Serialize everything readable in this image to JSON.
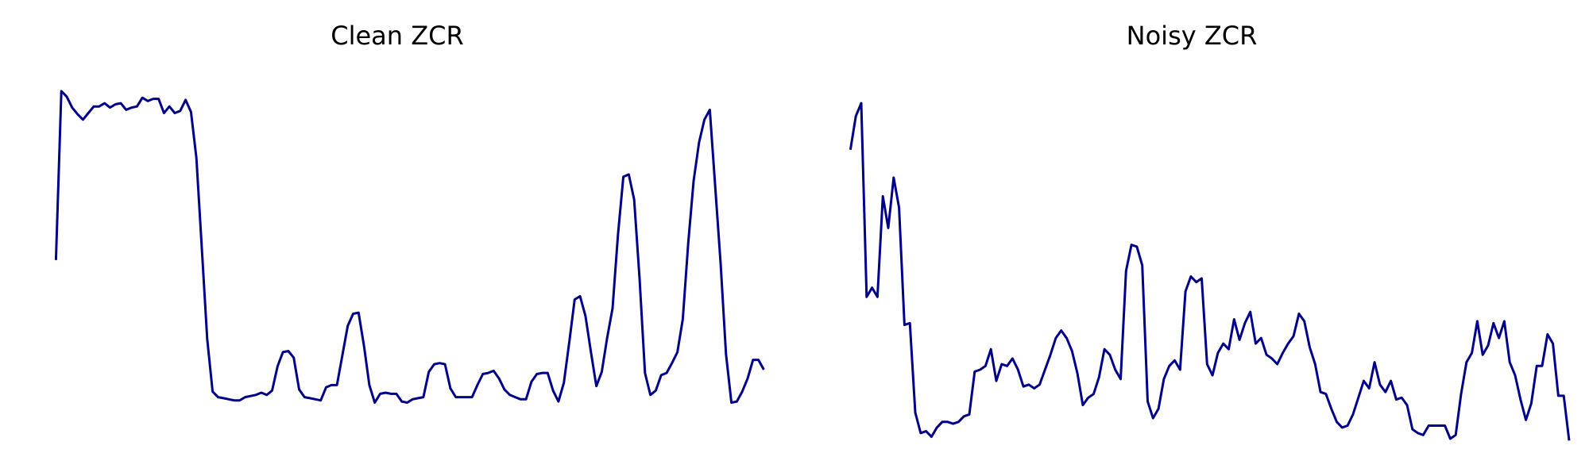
{
  "chart_data": [
    {
      "type": "line",
      "title": "Clean ZCR",
      "xlabel": "",
      "ylabel": "",
      "grid": false,
      "axes_visible": false,
      "color": "#00008B",
      "xlim": [
        -3,
        133
      ],
      "ylim": [
        0.02,
        0.36
      ],
      "values": [
        0.188,
        0.342,
        0.337,
        0.327,
        0.321,
        0.316,
        0.322,
        0.328,
        0.328,
        0.331,
        0.327,
        0.33,
        0.331,
        0.325,
        0.327,
        0.328,
        0.336,
        0.333,
        0.335,
        0.335,
        0.322,
        0.328,
        0.322,
        0.324,
        0.334,
        0.323,
        0.281,
        0.199,
        0.116,
        0.068,
        0.063,
        0.062,
        0.061,
        0.06,
        0.06,
        0.063,
        0.064,
        0.065,
        0.067,
        0.065,
        0.069,
        0.091,
        0.104,
        0.105,
        0.099,
        0.07,
        0.063,
        0.062,
        0.061,
        0.06,
        0.072,
        0.074,
        0.074,
        0.101,
        0.128,
        0.139,
        0.14,
        0.11,
        0.074,
        0.058,
        0.066,
        0.067,
        0.066,
        0.066,
        0.059,
        0.058,
        0.061,
        0.062,
        0.063,
        0.086,
        0.093,
        0.094,
        0.093,
        0.071,
        0.063,
        0.063,
        0.063,
        0.063,
        0.074,
        0.084,
        0.085,
        0.087,
        0.08,
        0.07,
        0.065,
        0.063,
        0.061,
        0.061,
        0.077,
        0.084,
        0.085,
        0.085,
        0.069,
        0.059,
        0.076,
        0.113,
        0.152,
        0.155,
        0.137,
        0.104,
        0.073,
        0.086,
        0.117,
        0.144,
        0.211,
        0.264,
        0.266,
        0.243,
        0.171,
        0.085,
        0.065,
        0.069,
        0.083,
        0.085,
        0.094,
        0.104,
        0.134,
        0.203,
        0.26,
        0.295,
        0.316,
        0.325,
        0.255,
        0.185,
        0.102,
        0.058,
        0.059,
        0.068,
        0.08,
        0.097,
        0.097,
        0.088
      ]
    },
    {
      "type": "line",
      "title": "Noisy ZCR",
      "xlabel": "",
      "ylabel": "",
      "grid": false,
      "axes_visible": false,
      "color": "#00008B",
      "xlim": [
        -3,
        133
      ],
      "ylim": [
        0.26,
        0.46
      ],
      "values": [
        0.418,
        0.436,
        0.443,
        0.339,
        0.344,
        0.339,
        0.393,
        0.376,
        0.403,
        0.387,
        0.324,
        0.325,
        0.277,
        0.266,
        0.267,
        0.264,
        0.269,
        0.272,
        0.272,
        0.271,
        0.272,
        0.275,
        0.276,
        0.299,
        0.3,
        0.302,
        0.311,
        0.294,
        0.303,
        0.302,
        0.306,
        0.3,
        0.291,
        0.292,
        0.29,
        0.292,
        0.3,
        0.308,
        0.317,
        0.321,
        0.317,
        0.31,
        0.298,
        0.281,
        0.285,
        0.287,
        0.296,
        0.311,
        0.308,
        0.3,
        0.295,
        0.353,
        0.367,
        0.366,
        0.356,
        0.283,
        0.274,
        0.279,
        0.295,
        0.302,
        0.305,
        0.3,
        0.342,
        0.35,
        0.347,
        0.349,
        0.303,
        0.297,
        0.309,
        0.314,
        0.311,
        0.327,
        0.316,
        0.325,
        0.331,
        0.314,
        0.317,
        0.308,
        0.306,
        0.303,
        0.309,
        0.314,
        0.318,
        0.33,
        0.326,
        0.312,
        0.303,
        0.288,
        0.287,
        0.279,
        0.272,
        0.269,
        0.27,
        0.276,
        0.285,
        0.294,
        0.29,
        0.304,
        0.292,
        0.288,
        0.294,
        0.284,
        0.285,
        0.281,
        0.268,
        0.266,
        0.265,
        0.27,
        0.27,
        0.27,
        0.27,
        0.263,
        0.265,
        0.287,
        0.304,
        0.309,
        0.326,
        0.308,
        0.313,
        0.325,
        0.317,
        0.326,
        0.304,
        0.297,
        0.284,
        0.273,
        0.282,
        0.302,
        0.302,
        0.319,
        0.314,
        0.286,
        0.286,
        0.262
      ]
    }
  ]
}
